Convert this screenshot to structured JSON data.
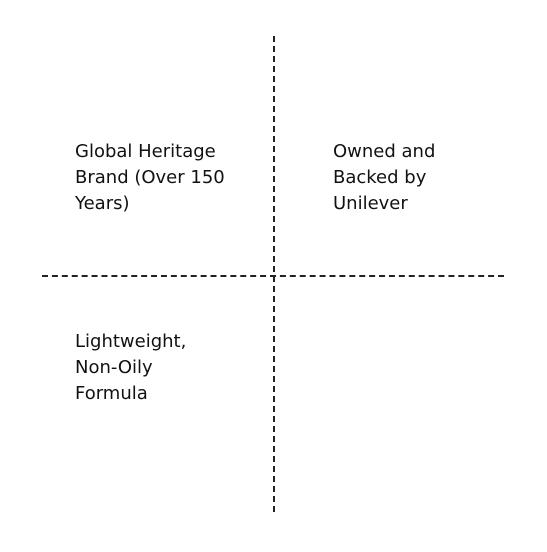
{
  "quadrants": {
    "top_left": "Global Heritage\nBrand (Over 150\nYears)",
    "top_right": "Owned and\nBacked by\nUnilever",
    "bottom_left": "Lightweight,\nNon-Oily\nFormula",
    "bottom_right": ""
  },
  "colors": {
    "divider": "#222222",
    "text": "#111111",
    "background": "#ffffff"
  }
}
